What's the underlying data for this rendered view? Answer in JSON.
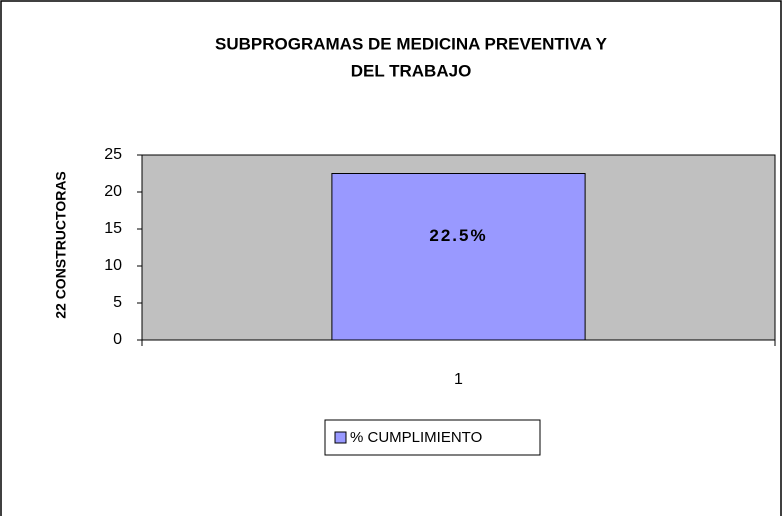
{
  "chart_data": {
    "type": "bar",
    "title": [
      "SUBPROGRAMAS DE MEDICINA PREVENTIVA Y",
      "DEL TRABAJO"
    ],
    "y_label": "22 CONSTRUCTORAS",
    "categories": [
      "1"
    ],
    "series": [
      {
        "name": "% CUMPLIMIENTO",
        "color": "#9999ff",
        "values": [
          22.5
        ],
        "value_labels": [
          "22.5%"
        ]
      }
    ],
    "ylim": [
      0,
      25
    ],
    "yticks": [
      0,
      5,
      10,
      15,
      20,
      25
    ],
    "plot_background": "#c0c0c0",
    "legend": "bottom"
  }
}
